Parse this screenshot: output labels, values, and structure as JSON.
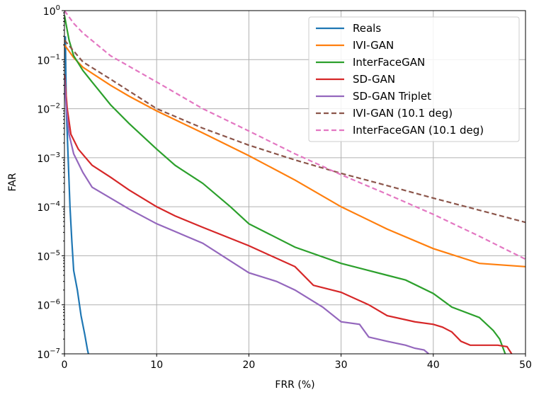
{
  "chart_data": {
    "type": "line",
    "title": "",
    "xlabel": "FRR (%)",
    "ylabel": "FAR",
    "xlim": [
      0,
      50
    ],
    "ylim": [
      1e-07,
      1
    ],
    "yscale": "log",
    "grid": true,
    "legend_position": "top-right",
    "x_ticks": [
      {
        "value": 0,
        "label": "0"
      },
      {
        "value": 10,
        "label": "10"
      },
      {
        "value": 20,
        "label": "20"
      },
      {
        "value": 30,
        "label": "30"
      },
      {
        "value": 40,
        "label": "40"
      },
      {
        "value": 50,
        "label": "50"
      }
    ],
    "y_ticks": [
      {
        "value": 1e-07,
        "base": "10",
        "exp": "−7"
      },
      {
        "value": 1e-06,
        "base": "10",
        "exp": "−6"
      },
      {
        "value": 1e-05,
        "base": "10",
        "exp": "−5"
      },
      {
        "value": 0.0001,
        "base": "10",
        "exp": "−4"
      },
      {
        "value": 0.001,
        "base": "10",
        "exp": "−3"
      },
      {
        "value": 0.01,
        "base": "10",
        "exp": "−2"
      },
      {
        "value": 0.1,
        "base": "10",
        "exp": "−1"
      },
      {
        "value": 1,
        "base": "10",
        "exp": "0"
      }
    ],
    "series": [
      {
        "name": "Reals",
        "color": "#1f77b4",
        "dash": "solid",
        "points": [
          [
            0.1,
            0.3
          ],
          [
            0.2,
            0.01
          ],
          [
            0.4,
            0.001
          ],
          [
            0.6,
            0.0001
          ],
          [
            0.8,
            2e-05
          ],
          [
            1.0,
            5e-06
          ],
          [
            1.4,
            2e-06
          ],
          [
            1.8,
            6e-07
          ],
          [
            2.2,
            2.5e-07
          ],
          [
            2.5,
            1.2e-07
          ],
          [
            2.6,
            1e-07
          ]
        ]
      },
      {
        "name": "IVI-GAN",
        "color": "#ff7f0e",
        "dash": "solid",
        "points": [
          [
            0,
            0.2
          ],
          [
            1,
            0.11
          ],
          [
            2,
            0.07
          ],
          [
            5,
            0.03
          ],
          [
            7,
            0.018
          ],
          [
            10,
            0.009
          ],
          [
            15,
            0.0032
          ],
          [
            20,
            0.0011
          ],
          [
            25,
            0.00035
          ],
          [
            30,
            0.0001
          ],
          [
            35,
            3.5e-05
          ],
          [
            40,
            1.4e-05
          ],
          [
            45,
            7e-06
          ],
          [
            50,
            6e-06
          ]
        ]
      },
      {
        "name": "InterFaceGAN",
        "color": "#2ca02c",
        "dash": "solid",
        "points": [
          [
            0,
            0.8
          ],
          [
            0.5,
            0.25
          ],
          [
            1,
            0.12
          ],
          [
            2,
            0.06
          ],
          [
            3,
            0.035
          ],
          [
            5,
            0.012
          ],
          [
            7,
            0.005
          ],
          [
            10,
            0.0015
          ],
          [
            12,
            0.0007
          ],
          [
            15,
            0.0003
          ],
          [
            18,
            0.0001
          ],
          [
            20,
            4.5e-05
          ],
          [
            25,
            1.5e-05
          ],
          [
            30,
            7e-06
          ],
          [
            35,
            4e-06
          ],
          [
            37,
            3.2e-06
          ],
          [
            40,
            1.7e-06
          ],
          [
            42,
            9e-07
          ],
          [
            45,
            5.5e-07
          ],
          [
            46.5,
            3e-07
          ],
          [
            47.2,
            2e-07
          ],
          [
            47.8,
            1e-07
          ]
        ]
      },
      {
        "name": "SD-GAN",
        "color": "#d62728",
        "dash": "solid",
        "points": [
          [
            0,
            0.05
          ],
          [
            0.3,
            0.01
          ],
          [
            0.7,
            0.003
          ],
          [
            1.5,
            0.0015
          ],
          [
            3,
            0.0007
          ],
          [
            5,
            0.0004
          ],
          [
            7,
            0.00022
          ],
          [
            10,
            0.0001
          ],
          [
            12,
            6.5e-05
          ],
          [
            15,
            3.8e-05
          ],
          [
            20,
            1.6e-05
          ],
          [
            25,
            6e-06
          ],
          [
            27,
            2.5e-06
          ],
          [
            30,
            1.8e-06
          ],
          [
            33,
            1e-06
          ],
          [
            35,
            6e-07
          ],
          [
            38,
            4.5e-07
          ],
          [
            40,
            4e-07
          ],
          [
            41,
            3.5e-07
          ],
          [
            42,
            2.8e-07
          ],
          [
            43,
            1.8e-07
          ],
          [
            44,
            1.5e-07
          ],
          [
            47,
            1.5e-07
          ],
          [
            48,
            1.4e-07
          ],
          [
            48.5,
            1e-07
          ]
        ]
      },
      {
        "name": "SD-GAN Triplet",
        "color": "#9467bd",
        "dash": "solid",
        "points": [
          [
            0,
            0.04
          ],
          [
            0.2,
            0.01
          ],
          [
            0.5,
            0.003
          ],
          [
            1,
            0.0012
          ],
          [
            2,
            0.0005
          ],
          [
            3,
            0.00025
          ],
          [
            5,
            0.00015
          ],
          [
            7,
            9e-05
          ],
          [
            10,
            4.5e-05
          ],
          [
            15,
            1.8e-05
          ],
          [
            20,
            4.5e-06
          ],
          [
            23,
            3e-06
          ],
          [
            25,
            2e-06
          ],
          [
            28,
            9e-07
          ],
          [
            30,
            4.5e-07
          ],
          [
            32,
            4e-07
          ],
          [
            33,
            2.2e-07
          ],
          [
            35,
            1.8e-07
          ],
          [
            37,
            1.5e-07
          ],
          [
            38,
            1.3e-07
          ],
          [
            39,
            1.2e-07
          ],
          [
            39.5,
            1e-07
          ]
        ]
      },
      {
        "name": "IVI-GAN (10.1 deg)",
        "color": "#8c564b",
        "dash": "dashed",
        "points": [
          [
            0,
            0.25
          ],
          [
            1,
            0.15
          ],
          [
            2,
            0.09
          ],
          [
            5,
            0.04
          ],
          [
            10,
            0.01
          ],
          [
            15,
            0.004
          ],
          [
            20,
            0.0018
          ],
          [
            25,
            0.0009
          ],
          [
            30,
            0.00048
          ],
          [
            35,
            0.00027
          ],
          [
            40,
            0.00015
          ],
          [
            45,
            8.5e-05
          ],
          [
            50,
            4.8e-05
          ]
        ]
      },
      {
        "name": "InterFaceGAN (10.1 deg)",
        "color": "#e377c2",
        "dash": "dashed",
        "points": [
          [
            0,
            1.0
          ],
          [
            1,
            0.55
          ],
          [
            2,
            0.35
          ],
          [
            5,
            0.12
          ],
          [
            10,
            0.035
          ],
          [
            15,
            0.01
          ],
          [
            20,
            0.0035
          ],
          [
            25,
            0.0012
          ],
          [
            30,
            0.00045
          ],
          [
            35,
            0.00018
          ],
          [
            40,
            7e-05
          ],
          [
            45,
            2.5e-05
          ],
          [
            50,
            8.5e-06
          ]
        ]
      }
    ]
  }
}
